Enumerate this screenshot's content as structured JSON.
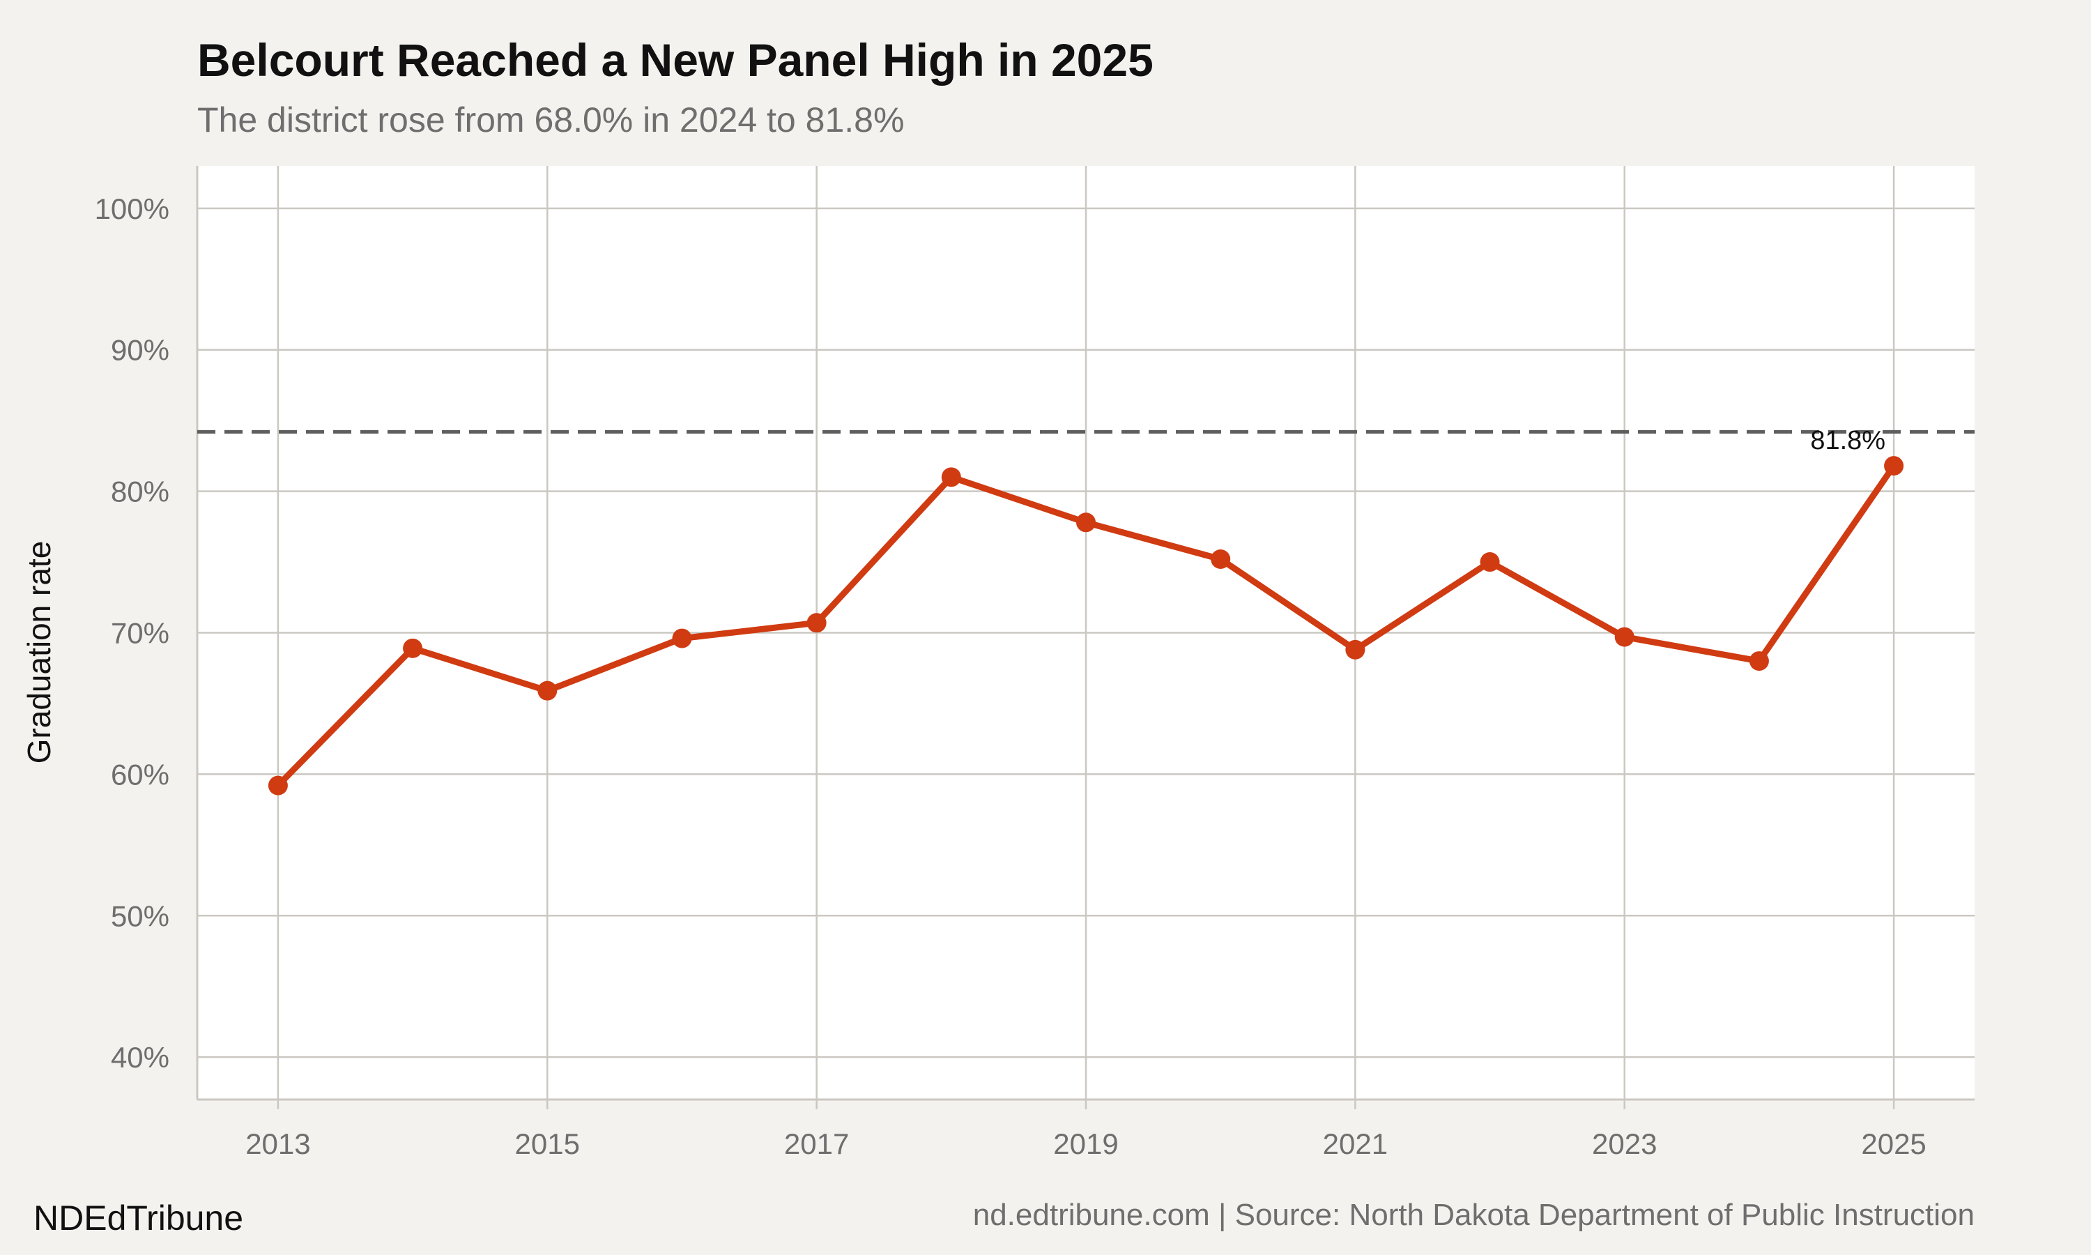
{
  "header": {
    "title": "Belcourt Reached a New Panel High in 2025",
    "subtitle": "The district rose from 68.0% in 2024 to 81.8%"
  },
  "footer": {
    "brand": "NDEdTribune",
    "source": "nd.edtribune.com | Source: North Dakota Department of Public Instruction"
  },
  "colors": {
    "background": "#f4f2ee",
    "panel": "#ffffff",
    "line": "#d03b12",
    "grid": "#cbc8c2",
    "reference": "#5e5e5e"
  },
  "chart_data": {
    "type": "line",
    "title": "Belcourt Reached a New Panel High in 2025",
    "subtitle": "The district rose from 68.0% in 2024 to 81.8%",
    "xlabel": "",
    "ylabel": "Graduation rate",
    "x": [
      2013,
      2014,
      2015,
      2016,
      2017,
      2018,
      2019,
      2020,
      2021,
      2022,
      2023,
      2024,
      2025
    ],
    "series": [
      {
        "values": [
          59.2,
          68.9,
          65.9,
          69.6,
          70.7,
          81.0,
          77.8,
          75.2,
          68.8,
          75.0,
          69.7,
          68.0,
          81.8
        ]
      }
    ],
    "xticks": [
      2013,
      2015,
      2017,
      2019,
      2021,
      2023,
      2025
    ],
    "xtick_labels": [
      "2013",
      "2015",
      "2017",
      "2019",
      "2021",
      "2023",
      "2025"
    ],
    "yticks": [
      40,
      50,
      60,
      70,
      80,
      90,
      100
    ],
    "ytick_labels": [
      "40%",
      "50%",
      "60%",
      "70%",
      "80%",
      "90%",
      "100%"
    ],
    "xlim": [
      2012.4,
      2025.6
    ],
    "ylim": [
      37,
      103
    ],
    "reference_line": {
      "y": 84.2,
      "style": "dashed"
    },
    "annotations": [
      {
        "x": 2025,
        "y": 81.8,
        "text": "81.8%"
      }
    ],
    "grid": true,
    "legend": "none"
  }
}
